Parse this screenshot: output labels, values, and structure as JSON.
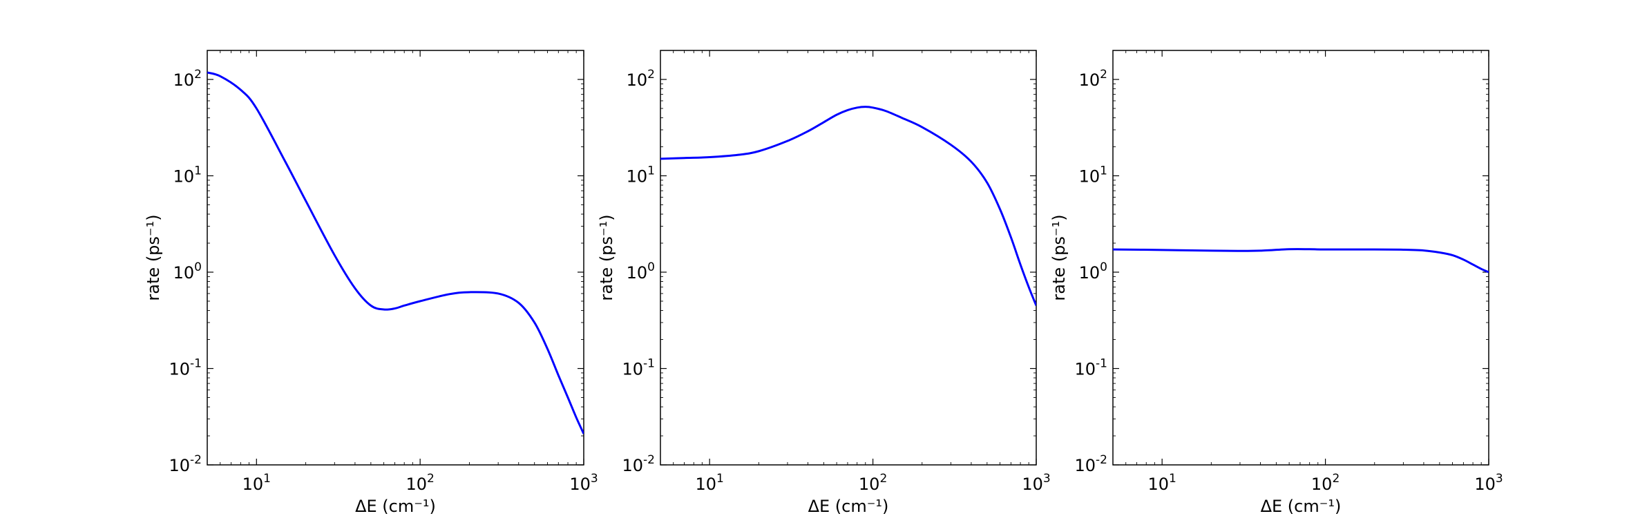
{
  "chart_data": [
    {
      "type": "line",
      "xscale": "log",
      "yscale": "log",
      "xlim": [
        5,
        1000
      ],
      "ylim": [
        0.01,
        200
      ],
      "xticks": [
        10,
        100,
        1000
      ],
      "yticks": [
        0.01,
        0.1,
        1,
        10,
        100
      ],
      "xlabel": "ΔE (cm⁻¹)",
      "ylabel": "rate (ps⁻¹)",
      "color": "#0000ff",
      "x": [
        5,
        6,
        8,
        10,
        15,
        20,
        30,
        40,
        50,
        60,
        70,
        80,
        100,
        150,
        200,
        300,
        400,
        500,
        600,
        700,
        800,
        900,
        1000
      ],
      "y": [
        118,
        108,
        78,
        50,
        14,
        5.5,
        1.5,
        0.68,
        0.45,
        0.41,
        0.42,
        0.45,
        0.5,
        0.59,
        0.62,
        0.6,
        0.48,
        0.3,
        0.16,
        0.085,
        0.05,
        0.031,
        0.021
      ]
    },
    {
      "type": "line",
      "xscale": "log",
      "yscale": "log",
      "xlim": [
        5,
        1000
      ],
      "ylim": [
        0.01,
        200
      ],
      "xticks": [
        10,
        100,
        1000
      ],
      "yticks": [
        0.01,
        0.1,
        1,
        10,
        100
      ],
      "xlabel": "ΔE (cm⁻¹)",
      "ylabel": "rate (ps⁻¹)",
      "color": "#0000ff",
      "x": [
        5,
        7,
        10,
        15,
        20,
        30,
        40,
        50,
        60,
        70,
        80,
        90,
        100,
        120,
        150,
        200,
        300,
        400,
        500,
        600,
        700,
        800,
        900,
        1000
      ],
      "y": [
        15,
        15.3,
        15.6,
        16.5,
        18,
        23,
        29,
        36,
        43,
        48,
        51,
        52,
        51,
        47,
        40,
        32,
        21,
        14,
        8.5,
        4.5,
        2.3,
        1.2,
        0.7,
        0.45
      ]
    },
    {
      "type": "line",
      "xscale": "log",
      "yscale": "log",
      "xlim": [
        5,
        1000
      ],
      "ylim": [
        0.01,
        200
      ],
      "xticks": [
        10,
        100,
        1000
      ],
      "yticks": [
        0.01,
        0.1,
        1,
        10,
        100
      ],
      "xlabel": "ΔE (cm⁻¹)",
      "ylabel": "rate (ps⁻¹)",
      "color": "#0000ff",
      "x": [
        5,
        10,
        20,
        30,
        40,
        60,
        80,
        100,
        200,
        300,
        400,
        500,
        600,
        700,
        800,
        900,
        1000
      ],
      "y": [
        1.72,
        1.7,
        1.67,
        1.66,
        1.67,
        1.73,
        1.73,
        1.72,
        1.72,
        1.71,
        1.68,
        1.6,
        1.5,
        1.35,
        1.2,
        1.08,
        1.0
      ]
    }
  ]
}
